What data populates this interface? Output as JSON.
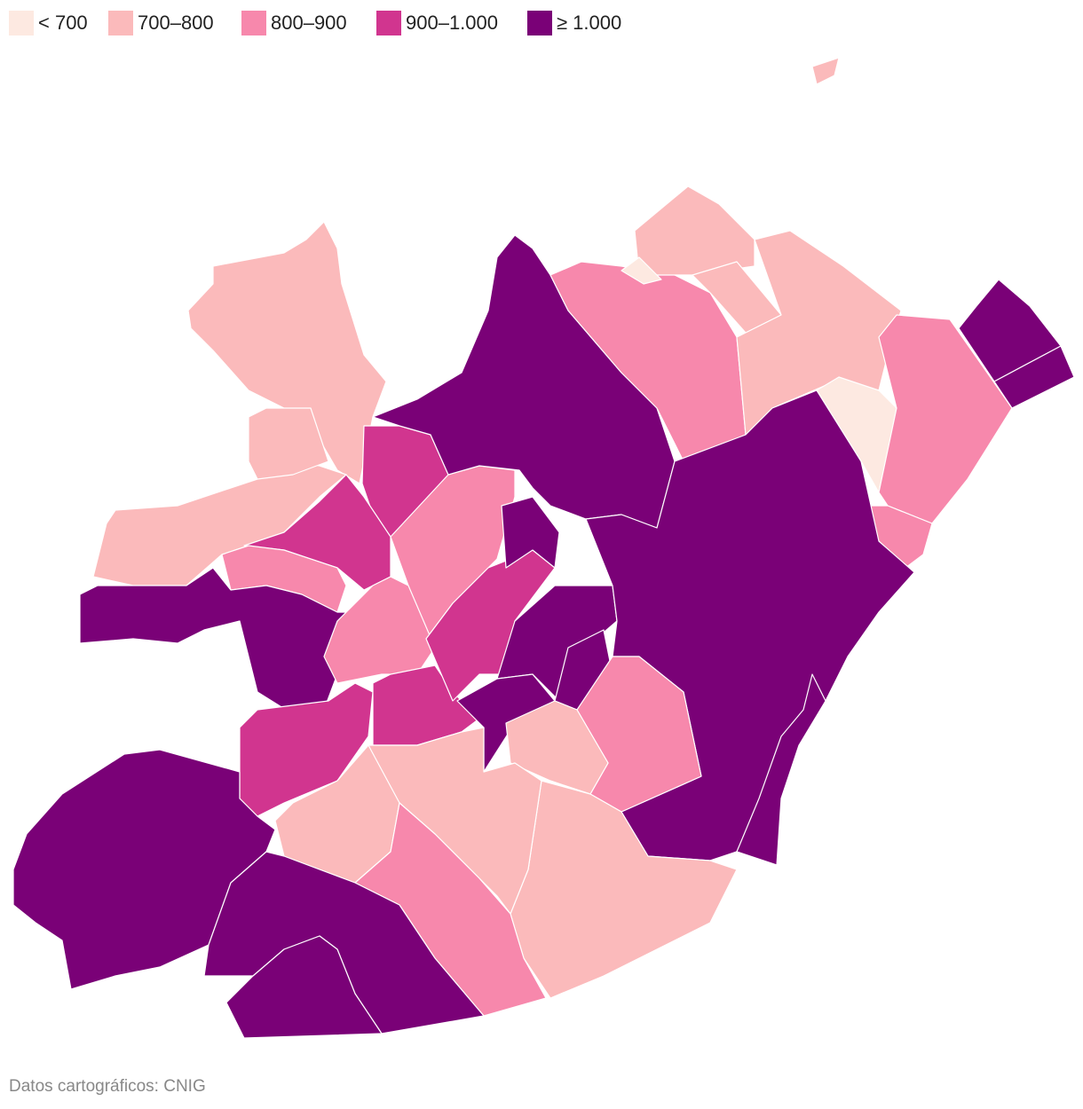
{
  "legend": [
    {
      "label": "< 700",
      "color": "#fde9e1"
    },
    {
      "label": "700–800",
      "color": "#fbbabb"
    },
    {
      "label": "800–900",
      "color": "#f788ac"
    },
    {
      "label": "900–1.000",
      "color": "#d1358f"
    },
    {
      "label": "≥ 1.000",
      "color": "#7a0177"
    }
  ],
  "regions": [
    1,
    1,
    1,
    3,
    3,
    2,
    4,
    2,
    2,
    3,
    3,
    3,
    4,
    4,
    4,
    4,
    4,
    2,
    1,
    1,
    1,
    0,
    2,
    4,
    4,
    2,
    4,
    2,
    1,
    1,
    1,
    1,
    2,
    4,
    4,
    4,
    4,
    1,
    0
  ],
  "source": "Datos cartográficos: CNIG"
}
